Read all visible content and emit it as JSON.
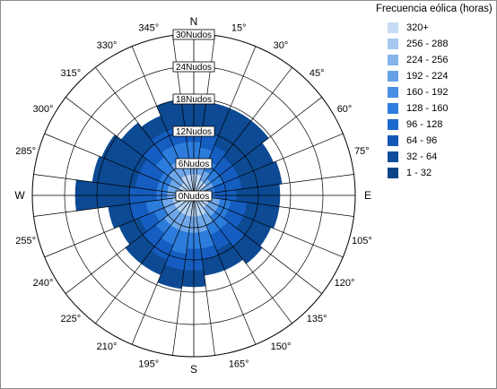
{
  "chart_data": {
    "type": "wind-rose",
    "title": "",
    "legend": {
      "title": "Frecuencia eólica (horas)",
      "placement": "top-right",
      "bins": [
        {
          "label": "320+",
          "color": "#c6dbf5"
        },
        {
          "label": "256 - 288",
          "color": "#a6c9f0"
        },
        {
          "label": "224 - 256",
          "color": "#84b4ea"
        },
        {
          "label": "192 - 224",
          "color": "#67a2e6"
        },
        {
          "label": "160 - 192",
          "color": "#4a8ee4"
        },
        {
          "label": "128 - 160",
          "color": "#2f7ddf"
        },
        {
          "label": "96 - 128",
          "color": "#1b68d0"
        },
        {
          "label": "64 - 96",
          "color": "#1357b4"
        },
        {
          "label": "32 - 64",
          "color": "#0f4d9c"
        },
        {
          "label": "1 - 32",
          "color": "#0c4488"
        }
      ]
    },
    "radial_axis": {
      "unit": "Nudos",
      "max": 30,
      "ticks": [
        {
          "value": 0,
          "label": "0Nudos"
        },
        {
          "value": 6,
          "label": "6Nudos"
        },
        {
          "value": 12,
          "label": "12Nudos"
        },
        {
          "value": 18,
          "label": "18Nudos"
        },
        {
          "value": 24,
          "label": "24Nudos"
        },
        {
          "value": 30,
          "label": "30Nudos"
        }
      ]
    },
    "direction_labels": [
      {
        "deg": 0,
        "label": "N"
      },
      {
        "deg": 15,
        "label": "15°"
      },
      {
        "deg": 30,
        "label": "30°"
      },
      {
        "deg": 45,
        "label": "45°"
      },
      {
        "deg": 60,
        "label": "60°"
      },
      {
        "deg": 75,
        "label": "75°"
      },
      {
        "deg": 90,
        "label": "E"
      },
      {
        "deg": 105,
        "label": "105°"
      },
      {
        "deg": 120,
        "label": "120°"
      },
      {
        "deg": 135,
        "label": "135°"
      },
      {
        "deg": 150,
        "label": "150°"
      },
      {
        "deg": 165,
        "label": "165°"
      },
      {
        "deg": 180,
        "label": "S"
      },
      {
        "deg": 195,
        "label": "195°"
      },
      {
        "deg": 210,
        "label": "210°"
      },
      {
        "deg": 225,
        "label": "225°"
      },
      {
        "deg": 240,
        "label": "240°"
      },
      {
        "deg": 255,
        "label": "255°"
      },
      {
        "deg": 270,
        "label": "W"
      },
      {
        "deg": 285,
        "label": "285°"
      },
      {
        "deg": 300,
        "label": "300°"
      },
      {
        "deg": 315,
        "label": "315°"
      },
      {
        "deg": 330,
        "label": "330°"
      },
      {
        "deg": 345,
        "label": "345°"
      }
    ],
    "sector_width_deg": 15,
    "sector_bands": [
      {
        "deg": 0,
        "band_edges_knots": [
          4,
          7,
          10,
          13,
          17.5
        ]
      },
      {
        "deg": 15,
        "band_edges_knots": [
          4,
          6,
          9,
          12,
          17.5
        ]
      },
      {
        "deg": 30,
        "band_edges_knots": [
          3,
          5,
          7,
          10,
          17.5
        ]
      },
      {
        "deg": 45,
        "band_edges_knots": [
          3,
          4,
          6,
          9,
          17.5
        ]
      },
      {
        "deg": 60,
        "band_edges_knots": [
          2,
          4,
          6,
          9,
          16
        ]
      },
      {
        "deg": 75,
        "band_edges_knots": [
          2,
          3,
          4,
          9,
          16.5
        ]
      },
      {
        "deg": 90,
        "band_edges_knots": [
          2,
          3,
          4,
          8,
          16
        ]
      },
      {
        "deg": 105,
        "band_edges_knots": [
          3,
          5,
          7,
          10,
          16
        ]
      },
      {
        "deg": 120,
        "band_edges_knots": [
          3,
          5,
          7,
          10,
          15.5
        ]
      },
      {
        "deg": 135,
        "band_edges_knots": [
          3,
          5,
          8,
          12,
          16
        ]
      },
      {
        "deg": 150,
        "band_edges_knots": [
          4,
          6,
          8,
          11,
          15
        ]
      },
      {
        "deg": 165,
        "band_edges_knots": [
          4,
          7,
          10,
          12,
          15
        ]
      },
      {
        "deg": 180,
        "band_edges_knots": [
          4,
          7,
          10,
          14,
          17
        ]
      },
      {
        "deg": 195,
        "band_edges_knots": [
          4,
          7,
          11,
          14,
          17.5
        ]
      },
      {
        "deg": 210,
        "band_edges_knots": [
          4,
          7,
          10,
          13,
          16
        ]
      },
      {
        "deg": 225,
        "band_edges_knots": [
          4,
          7,
          9,
          12,
          16
        ]
      },
      {
        "deg": 240,
        "band_edges_knots": [
          4,
          6,
          8,
          11,
          15
        ]
      },
      {
        "deg": 255,
        "band_edges_knots": [
          4,
          6,
          9,
          12,
          16
        ]
      },
      {
        "deg": 270,
        "band_edges_knots": [
          3,
          5,
          7,
          12,
          22
        ]
      },
      {
        "deg": 285,
        "band_edges_knots": [
          3,
          5,
          7,
          11,
          19
        ]
      },
      {
        "deg": 300,
        "band_edges_knots": [
          3,
          5,
          7,
          11,
          18.5
        ]
      },
      {
        "deg": 315,
        "band_edges_knots": [
          3,
          6,
          9,
          12,
          17
        ]
      },
      {
        "deg": 330,
        "band_edges_knots": [
          4,
          7,
          10,
          13,
          16
        ]
      },
      {
        "deg": 345,
        "band_edges_knots": [
          4,
          7,
          10,
          13,
          18
        ]
      }
    ],
    "sector_band_colors": [
      "#b8d4f4",
      "#6fa8ea",
      "#2c7cdc",
      "#155dc0",
      "#0d4a93"
    ],
    "grid": true
  }
}
